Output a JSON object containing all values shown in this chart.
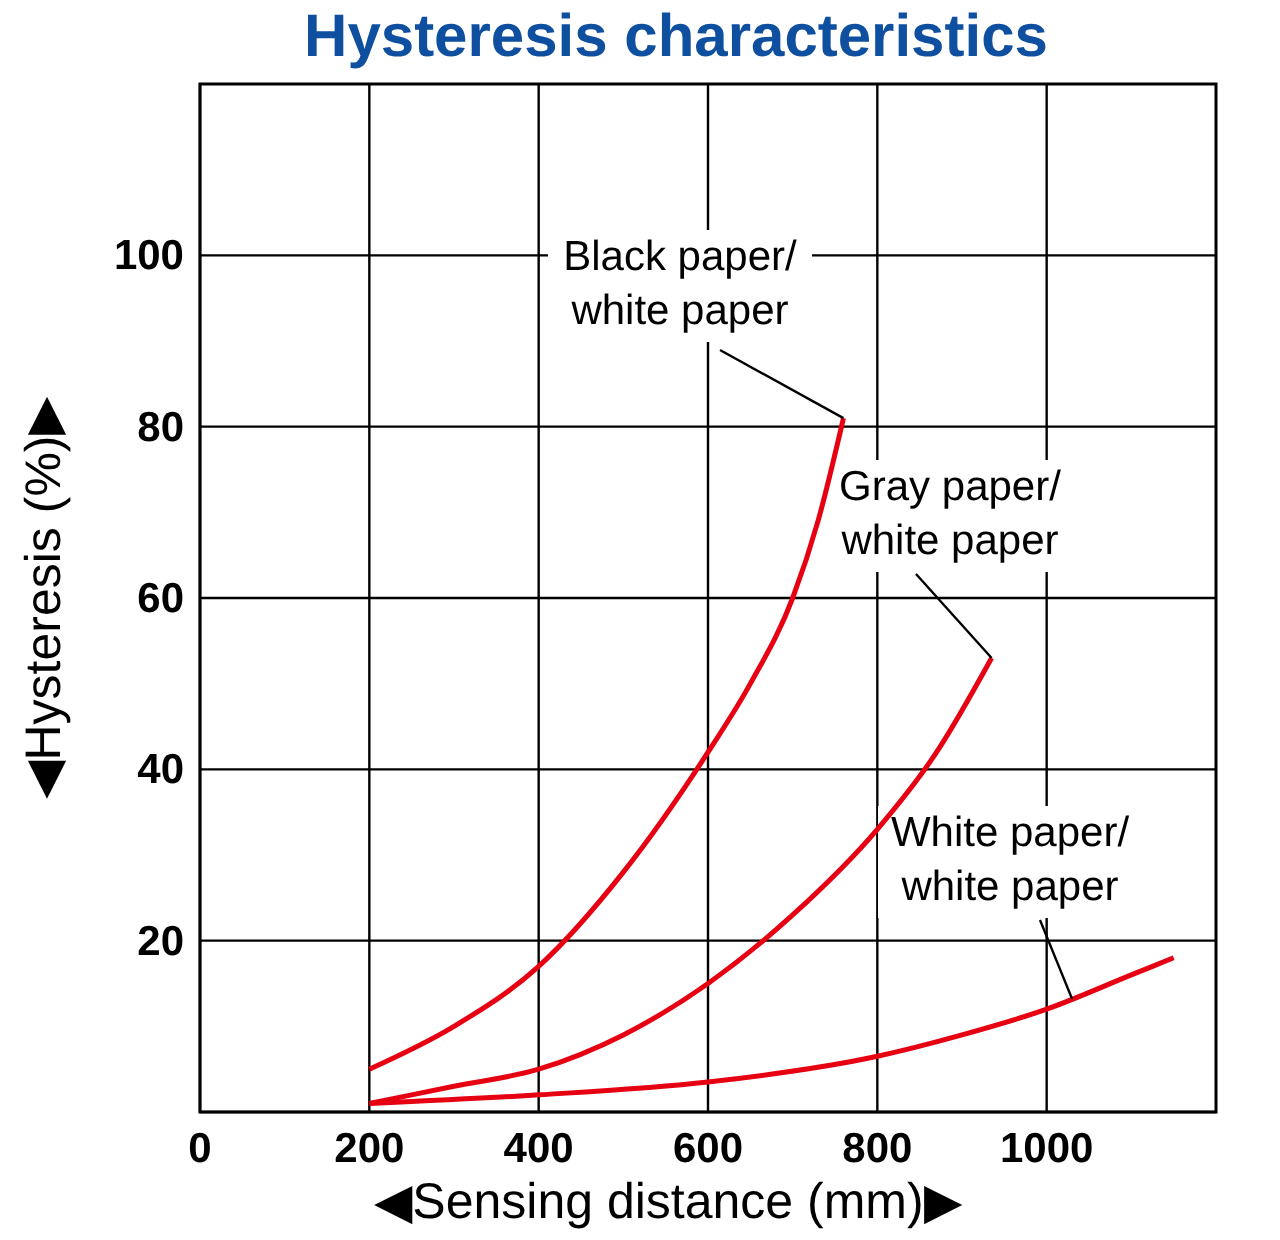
{
  "chart_data": {
    "type": "line",
    "title": "Hysteresis characteristics",
    "xlabel": "◀Sensing distance (mm)▶",
    "ylabel": "◀Hysteresis (%)▶",
    "xlim": [
      0,
      1200
    ],
    "xticks": [
      0,
      200,
      400,
      600,
      800,
      1000
    ],
    "ylim": [
      0,
      120
    ],
    "yticks": [
      {
        "value": 0,
        "label": null
      },
      20,
      40,
      60,
      80,
      100
    ],
    "grid": true,
    "line_style": "solid",
    "series": [
      {
        "name": "Black paper/\nwhite paper",
        "color": "#e60012",
        "x": [
          200,
          300,
          400,
          500,
          600,
          650,
          700,
          730,
          760
        ],
        "values": [
          5,
          10,
          17,
          28,
          42,
          50,
          60,
          69,
          81
        ]
      },
      {
        "name": "Gray paper/\nwhite paper",
        "color": "#e60012",
        "x": [
          200,
          300,
          400,
          500,
          600,
          700,
          800,
          870,
          935
        ],
        "values": [
          1,
          3,
          5,
          9,
          15,
          23,
          33,
          42,
          53
        ]
      },
      {
        "name": "White paper/\nwhite paper",
        "color": "#e60012",
        "x": [
          200,
          400,
          600,
          800,
          900,
          1000,
          1100,
          1150
        ],
        "values": [
          1,
          2,
          3.5,
          6.5,
          9,
          12,
          16,
          18
        ]
      }
    ]
  }
}
